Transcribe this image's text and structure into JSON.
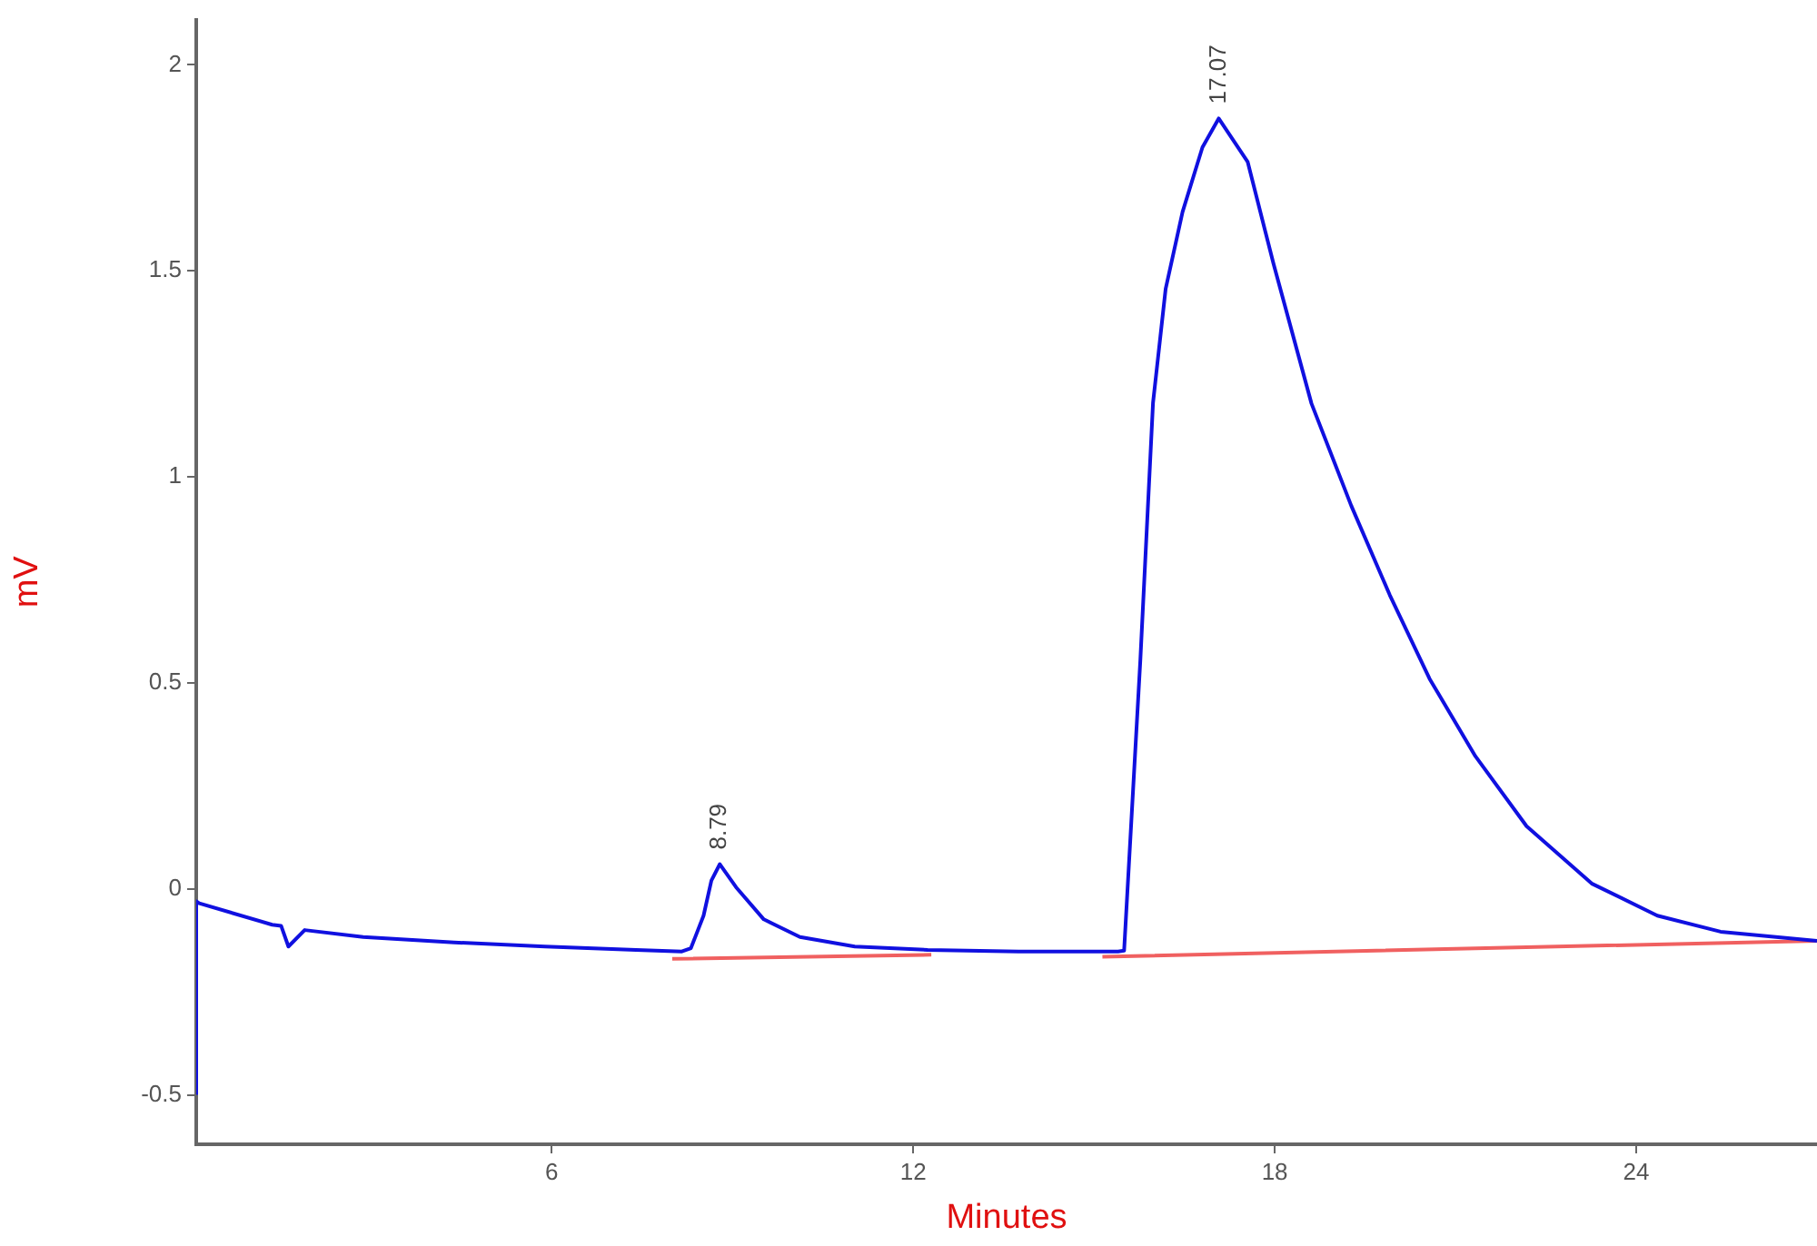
{
  "chart_data": {
    "type": "line",
    "xlabel": "Minutes",
    "ylabel": "mV",
    "xlim": [
      0.1,
      27
    ],
    "xticks": [
      6,
      12,
      18,
      24
    ],
    "ylim": [
      -0.62,
      2.11
    ],
    "yticks": [
      -0.5,
      0,
      0.5,
      1,
      1.5,
      2
    ],
    "grid": false,
    "legend": false,
    "marker": "none",
    "line_style": "solid",
    "series": [
      {
        "color": "#1010e0",
        "x": [
          0.1,
          0.1,
          0.15,
          1.36,
          1.51,
          1.63,
          1.9,
          2.87,
          4.38,
          5.89,
          7.4,
          8.16,
          8.31,
          8.52,
          8.65,
          8.79,
          9.06,
          9.52,
          10.12,
          11.03,
          12.24,
          13.75,
          15.4,
          15.5,
          15.77,
          15.98,
          16.19,
          16.47,
          16.8,
          17.07,
          17.55,
          17.98,
          18.61,
          19.27,
          19.91,
          20.57,
          21.33,
          22.18,
          23.26,
          24.35,
          25.4,
          27.0
        ],
        "values": [
          -0.5,
          -0.03,
          -0.035,
          -0.087,
          -0.09,
          -0.14,
          -0.1,
          -0.117,
          -0.13,
          -0.14,
          -0.148,
          -0.152,
          -0.144,
          -0.065,
          0.02,
          0.06,
          0.004,
          -0.074,
          -0.117,
          -0.14,
          -0.148,
          -0.152,
          -0.152,
          -0.15,
          0.557,
          1.18,
          1.457,
          1.643,
          1.8,
          1.87,
          1.765,
          1.517,
          1.178,
          0.93,
          0.713,
          0.51,
          0.322,
          0.152,
          0.013,
          -0.065,
          -0.104,
          -0.126
        ]
      },
      {
        "color": "#f06060",
        "x": [
          8.0,
          12.3,
          12.31,
          15.14,
          27.0
        ],
        "values": [
          -0.17,
          -0.16,
          null,
          -0.165,
          -0.126
        ]
      }
    ],
    "annotations": [
      {
        "text": "8.79",
        "x": 8.79,
        "y": 0.06
      },
      {
        "text": "17.07",
        "x": 17.07,
        "y": 1.87
      }
    ]
  }
}
